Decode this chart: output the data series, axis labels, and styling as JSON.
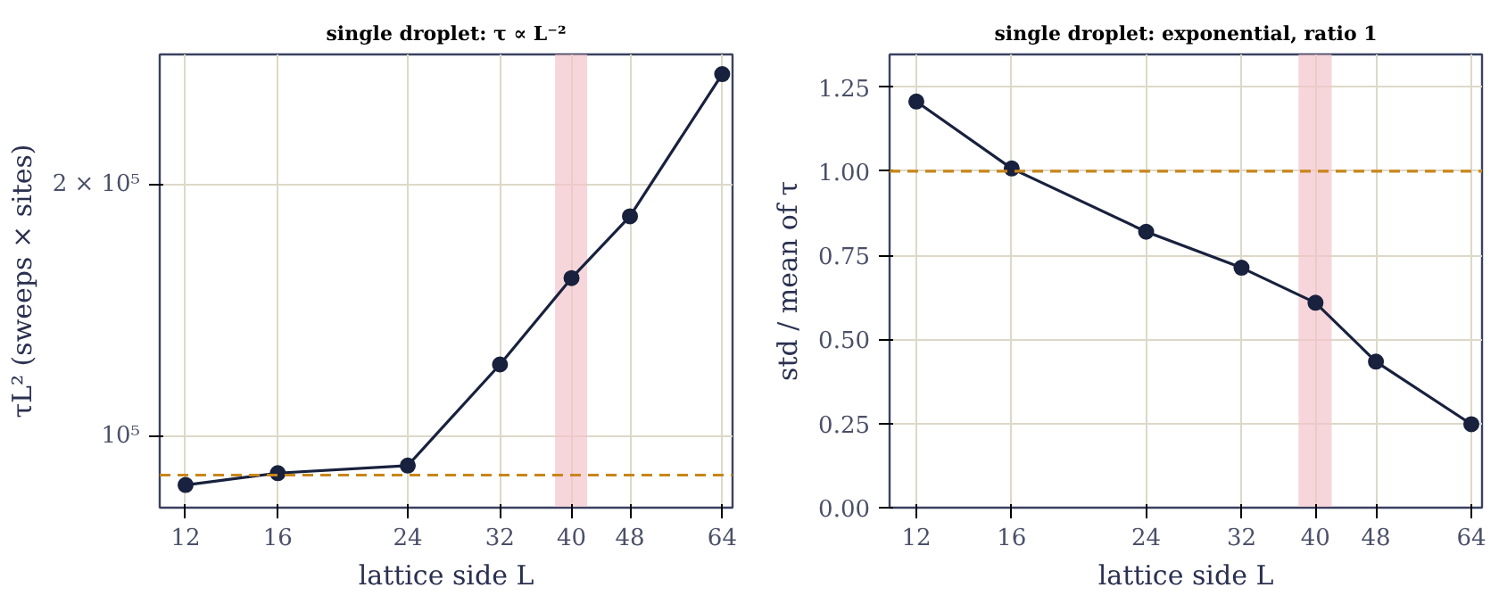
{
  "chart_data": [
    {
      "type": "line",
      "title": "single droplet: τ ∝ L⁻²",
      "xlabel": "lattice side L",
      "ylabel": "τL² (sweeps × sites)",
      "x": [
        12,
        16,
        24,
        32,
        40,
        48,
        64
      ],
      "series": [
        {
          "color": "#18213d",
          "values": [
            87400,
            90300,
            92200,
            121800,
            154500,
            183200,
            271000
          ]
        }
      ],
      "log": "xy",
      "xlim": [
        11.07,
        66.1
      ],
      "xticks": [
        12,
        16,
        24,
        32,
        40,
        48,
        64
      ],
      "ylim": [
        82100,
        286100
      ],
      "yticks": [
        {
          "value": 100000,
          "label": "10⁵"
        },
        {
          "value": 200000,
          "label": "2 × 10⁵"
        }
      ],
      "ref_lines": [
        {
          "axis": "y",
          "value": 89800,
          "color": "#c8861a",
          "line_style": "dashed"
        }
      ],
      "bands": [
        {
          "axis": "x",
          "from": 38,
          "to": 42,
          "color": "#f2c4ca"
        }
      ],
      "grid": true,
      "marker": "circle",
      "line_style": "solid"
    },
    {
      "type": "line",
      "title": "single droplet: exponential, ratio 1",
      "xlabel": "lattice side L",
      "ylabel": "std / mean of τ",
      "x": [
        12,
        16,
        24,
        32,
        40,
        48,
        64
      ],
      "series": [
        {
          "color": "#18213d",
          "values": [
            1.207,
            1.008,
            0.82,
            0.713,
            0.609,
            0.434,
            0.248
          ]
        }
      ],
      "log": "x",
      "xlim": [
        11.07,
        66.1
      ],
      "xticks": [
        12,
        16,
        24,
        32,
        40,
        48,
        64
      ],
      "ylim": [
        0,
        1.347
      ],
      "yticks": [
        {
          "value": 0,
          "label": "0.00"
        },
        {
          "value": 0.25,
          "label": "0.25"
        },
        {
          "value": 0.5,
          "label": "0.50"
        },
        {
          "value": 0.75,
          "label": "0.75"
        },
        {
          "value": 1.0,
          "label": "1.00"
        },
        {
          "value": 1.25,
          "label": "1.25"
        }
      ],
      "ref_lines": [
        {
          "axis": "y",
          "value": 1.0,
          "color": "#c8861a",
          "line_style": "dashed"
        }
      ],
      "bands": [
        {
          "axis": "x",
          "from": 38,
          "to": 42,
          "color": "#f2c4ca"
        }
      ],
      "grid": true,
      "marker": "circle",
      "line_style": "solid"
    }
  ]
}
